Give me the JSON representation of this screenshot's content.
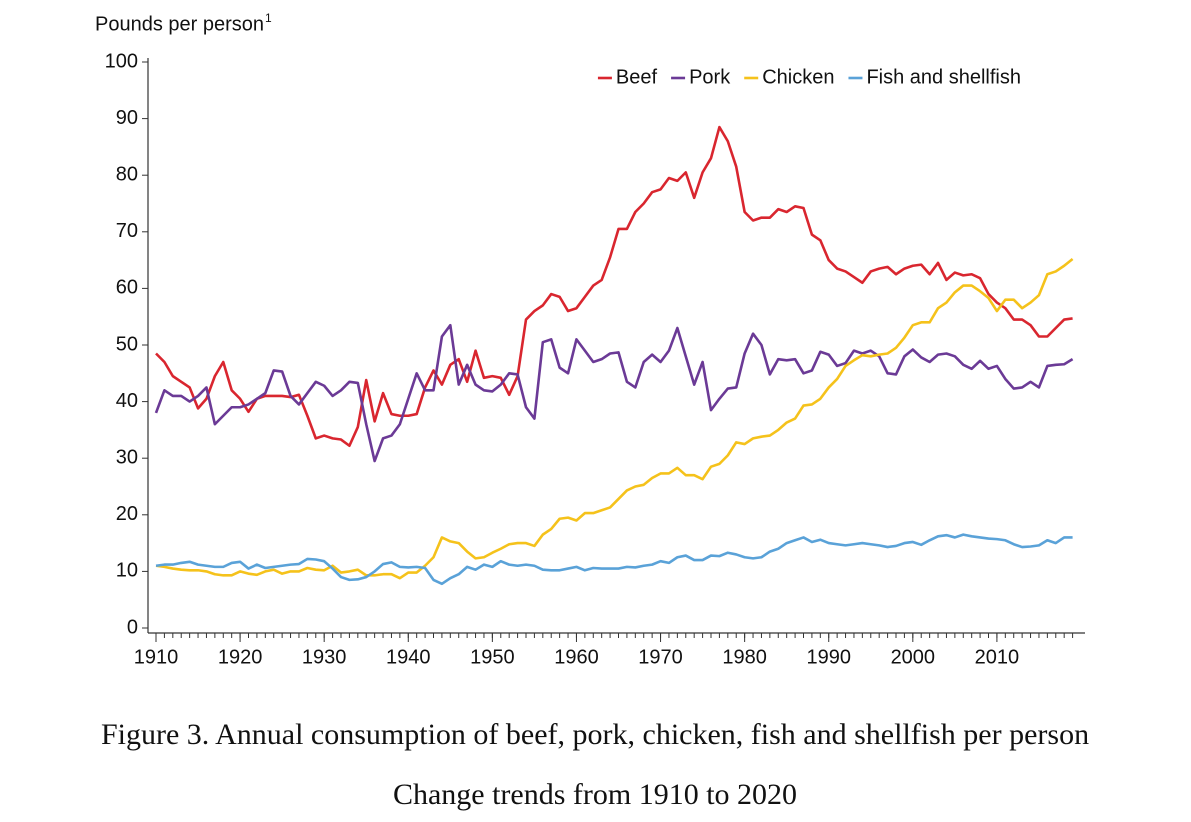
{
  "chart_data": {
    "type": "line",
    "y_label": "Pounds per person",
    "y_label_note": "1",
    "caption_lines": [
      "Figure 3. Annual consumption of beef, pork, chicken, fish and shellfish per person",
      "Change trends from 1910 to 2020"
    ],
    "x": [
      1910,
      1911,
      1912,
      1913,
      1914,
      1915,
      1916,
      1917,
      1918,
      1919,
      1920,
      1921,
      1922,
      1923,
      1924,
      1925,
      1926,
      1927,
      1928,
      1929,
      1930,
      1931,
      1932,
      1933,
      1934,
      1935,
      1936,
      1937,
      1938,
      1939,
      1940,
      1941,
      1942,
      1943,
      1944,
      1945,
      1946,
      1947,
      1948,
      1949,
      1950,
      1951,
      1952,
      1953,
      1954,
      1955,
      1956,
      1957,
      1958,
      1959,
      1960,
      1961,
      1962,
      1963,
      1964,
      1965,
      1966,
      1967,
      1968,
      1969,
      1970,
      1971,
      1972,
      1973,
      1974,
      1975,
      1976,
      1977,
      1978,
      1979,
      1980,
      1981,
      1982,
      1983,
      1984,
      1985,
      1986,
      1987,
      1988,
      1989,
      1990,
      1991,
      1992,
      1993,
      1994,
      1995,
      1996,
      1997,
      1998,
      1999,
      2000,
      2001,
      2002,
      2003,
      2004,
      2005,
      2006,
      2007,
      2008,
      2009,
      2010,
      2011,
      2012,
      2013,
      2014,
      2015,
      2016,
      2017,
      2018,
      2019
    ],
    "series": [
      {
        "name": "Beef",
        "color": "#d9262f",
        "values": [
          48.5,
          47,
          44.5,
          43.5,
          42.5,
          38.8,
          40.5,
          44.5,
          47,
          42,
          40.5,
          38.2,
          40.5,
          41,
          41,
          41,
          40.8,
          41.2,
          37.5,
          33.5,
          34,
          33.5,
          33.3,
          32.2,
          35.5,
          43.8,
          36.5,
          41.5,
          37.8,
          37.5,
          37.5,
          37.8,
          42.5,
          45.5,
          43,
          46.5,
          47.5,
          43.5,
          49,
          44.2,
          44.5,
          44.2,
          41.2,
          44.5,
          54.5,
          56,
          57,
          59,
          58.5,
          56,
          56.5,
          58.5,
          60.5,
          61.5,
          65.5,
          70.5,
          70.5,
          73.5,
          75,
          77,
          77.5,
          79.5,
          79,
          80.5,
          76,
          80.5,
          83,
          88.5,
          86,
          81.5,
          73.5,
          72,
          72.5,
          72.5,
          74,
          73.5,
          74.5,
          74.2,
          69.5,
          68.5,
          65,
          63.5,
          63,
          62,
          61,
          63,
          63.5,
          63.8,
          62.5,
          63.5,
          64,
          64.2,
          62.5,
          64.5,
          61.5,
          62.8,
          62.3,
          62.5,
          61.8,
          59,
          57.5,
          56.5,
          54.5,
          54.5,
          53.5,
          51.5,
          51.5,
          53,
          54.5,
          54.7
        ]
      },
      {
        "name": "Pork",
        "color": "#6b3a96",
        "values": [
          38,
          42,
          41,
          41,
          40,
          41,
          42.5,
          36,
          37.5,
          39,
          39,
          39.5,
          40.5,
          41.5,
          45.5,
          45.3,
          41,
          39.5,
          41.5,
          43.5,
          42.8,
          41,
          42,
          43.5,
          43.3,
          36,
          29.5,
          33.5,
          34,
          36,
          40.5,
          45,
          42,
          42,
          51.5,
          53.5,
          43,
          46.5,
          43,
          42,
          41.8,
          43,
          45,
          44.8,
          39,
          37,
          50.5,
          51,
          46,
          45,
          51,
          49,
          47,
          47.5,
          48.5,
          48.7,
          43.5,
          42.5,
          47,
          48.3,
          47,
          49,
          53,
          48,
          43,
          47,
          38.5,
          40.5,
          42.3,
          42.5,
          48.5,
          52,
          50,
          44.8,
          47.5,
          47.3,
          47.5,
          45,
          45.5,
          48.8,
          48.3,
          46.3,
          46.8,
          49,
          48.5,
          49,
          48,
          45,
          44.8,
          48,
          49.2,
          47.8,
          47,
          48.3,
          48.5,
          48,
          46.5,
          45.8,
          47.2,
          45.8,
          46.3,
          44,
          42.3,
          42.5,
          43.5,
          42.5,
          46.3,
          46.5,
          46.6,
          47.5
        ]
      },
      {
        "name": "Chicken",
        "color": "#f5c21b",
        "values": [
          11,
          10.8,
          10.5,
          10.3,
          10.2,
          10.2,
          10,
          9.5,
          9.3,
          9.3,
          10,
          9.6,
          9.4,
          10,
          10.3,
          9.6,
          10,
          10,
          10.6,
          10.3,
          10.2,
          11,
          9.8,
          10,
          10.3,
          9.3,
          9.3,
          9.5,
          9.5,
          8.8,
          9.8,
          9.8,
          11,
          12.5,
          16,
          15.3,
          15,
          13.5,
          12.3,
          12.5,
          13.3,
          14,
          14.8,
          15,
          15,
          14.5,
          16.5,
          17.5,
          19.3,
          19.5,
          19,
          20.3,
          20.3,
          20.8,
          21.3,
          22.8,
          24.3,
          25,
          25.3,
          26.5,
          27.3,
          27.3,
          28.3,
          27,
          27,
          26.3,
          28.5,
          29,
          30.5,
          32.8,
          32.5,
          33.5,
          33.8,
          34,
          35,
          36.3,
          37,
          39.3,
          39.5,
          40.5,
          42.5,
          44,
          46.3,
          47.3,
          48.2,
          48,
          48.3,
          48.5,
          49.5,
          51.3,
          53.5,
          54,
          54,
          56.5,
          57.5,
          59.3,
          60.5,
          60.5,
          59.5,
          58.3,
          56,
          58,
          58,
          56.5,
          57.5,
          58.8,
          62.5,
          63,
          64,
          65.2
        ]
      },
      {
        "name": "Fish and shellfish",
        "color": "#5aa2d8",
        "values": [
          11,
          11.2,
          11.2,
          11.5,
          11.7,
          11.2,
          11,
          10.8,
          10.8,
          11.5,
          11.7,
          10.5,
          11.2,
          10.6,
          10.8,
          11,
          11.2,
          11.3,
          12.2,
          12.1,
          11.8,
          10.5,
          9,
          8.5,
          8.6,
          9,
          10,
          11.3,
          11.6,
          10.8,
          10.7,
          10.8,
          10.6,
          8.5,
          7.8,
          8.8,
          9.5,
          10.8,
          10.3,
          11.2,
          10.8,
          11.8,
          11.2,
          11,
          11.2,
          11,
          10.3,
          10.2,
          10.2,
          10.5,
          10.8,
          10.2,
          10.6,
          10.5,
          10.5,
          10.5,
          10.8,
          10.7,
          11,
          11.2,
          11.8,
          11.5,
          12.5,
          12.8,
          12,
          12,
          12.8,
          12.7,
          13.3,
          13,
          12.5,
          12.3,
          12.5,
          13.5,
          14,
          15,
          15.5,
          16,
          15.2,
          15.6,
          15,
          14.8,
          14.6,
          14.8,
          15,
          14.8,
          14.6,
          14.3,
          14.5,
          15,
          15.2,
          14.7,
          15.5,
          16.2,
          16.4,
          16,
          16.5,
          16.2,
          16,
          15.8,
          15.7,
          15.5,
          14.8,
          14.3,
          14.4,
          14.6,
          15.5,
          15,
          16,
          16
        ]
      }
    ],
    "xlim": [
      1910,
      2020
    ],
    "xticks": [
      1910,
      1920,
      1930,
      1940,
      1950,
      1960,
      1970,
      1980,
      1990,
      2000,
      2010
    ],
    "ylim": [
      0,
      100
    ],
    "yticks": [
      0,
      10,
      20,
      30,
      40,
      50,
      60,
      70,
      80,
      90,
      100
    ],
    "grid": false,
    "legend": "top-right"
  }
}
